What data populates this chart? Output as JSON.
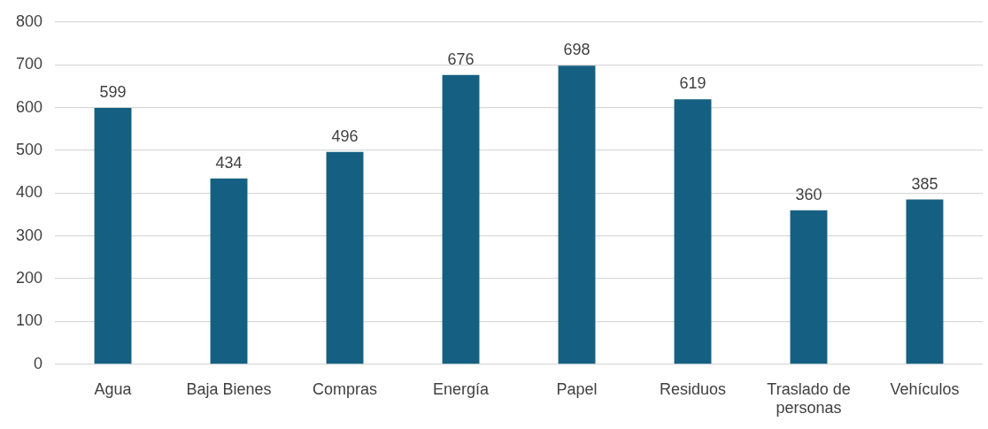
{
  "chart_data": {
    "type": "bar",
    "categories": [
      "Agua",
      "Baja Bienes",
      "Compras",
      "Energía",
      "Papel",
      "Residuos",
      "Traslado de personas",
      "Vehículos"
    ],
    "values": [
      599,
      434,
      496,
      676,
      698,
      619,
      360,
      385
    ],
    "color": "#156082",
    "ylim": [
      0,
      800
    ],
    "yticks": [
      0,
      100,
      200,
      300,
      400,
      500,
      600,
      700,
      800
    ],
    "grid": "y",
    "data_labels": true,
    "legend": false
  }
}
